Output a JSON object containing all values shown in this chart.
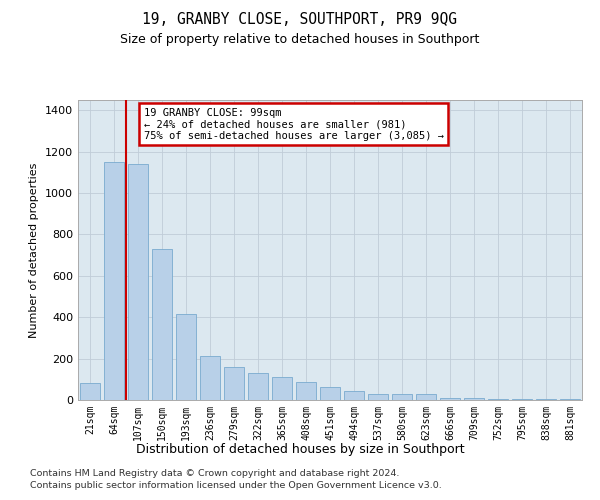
{
  "title": "19, GRANBY CLOSE, SOUTHPORT, PR9 9QG",
  "subtitle": "Size of property relative to detached houses in Southport",
  "xlabel": "Distribution of detached houses by size in Southport",
  "ylabel": "Number of detached properties",
  "categories": [
    "21sqm",
    "64sqm",
    "107sqm",
    "150sqm",
    "193sqm",
    "236sqm",
    "279sqm",
    "322sqm",
    "365sqm",
    "408sqm",
    "451sqm",
    "494sqm",
    "537sqm",
    "580sqm",
    "623sqm",
    "666sqm",
    "709sqm",
    "752sqm",
    "795sqm",
    "838sqm",
    "881sqm"
  ],
  "bar_heights": [
    80,
    1150,
    1140,
    730,
    415,
    215,
    160,
    130,
    110,
    85,
    65,
    45,
    30,
    30,
    30,
    8,
    8,
    5,
    5,
    5,
    5
  ],
  "bar_color": "#b8d0e8",
  "bar_edge_color": "#7aaacf",
  "vline_color": "#cc0000",
  "vline_x": 1.5,
  "annotation_text": "19 GRANBY CLOSE: 99sqm\n← 24% of detached houses are smaller (981)\n75% of semi-detached houses are larger (3,085) →",
  "ann_box_facecolor": "white",
  "ann_box_edgecolor": "#cc0000",
  "ylim_max": 1450,
  "yticks": [
    0,
    200,
    400,
    600,
    800,
    1000,
    1200,
    1400
  ],
  "bg_color": "#dce8f0",
  "grid_color": "#c0ccd8",
  "footer_line1": "Contains HM Land Registry data © Crown copyright and database right 2024.",
  "footer_line2": "Contains public sector information licensed under the Open Government Licence v3.0."
}
